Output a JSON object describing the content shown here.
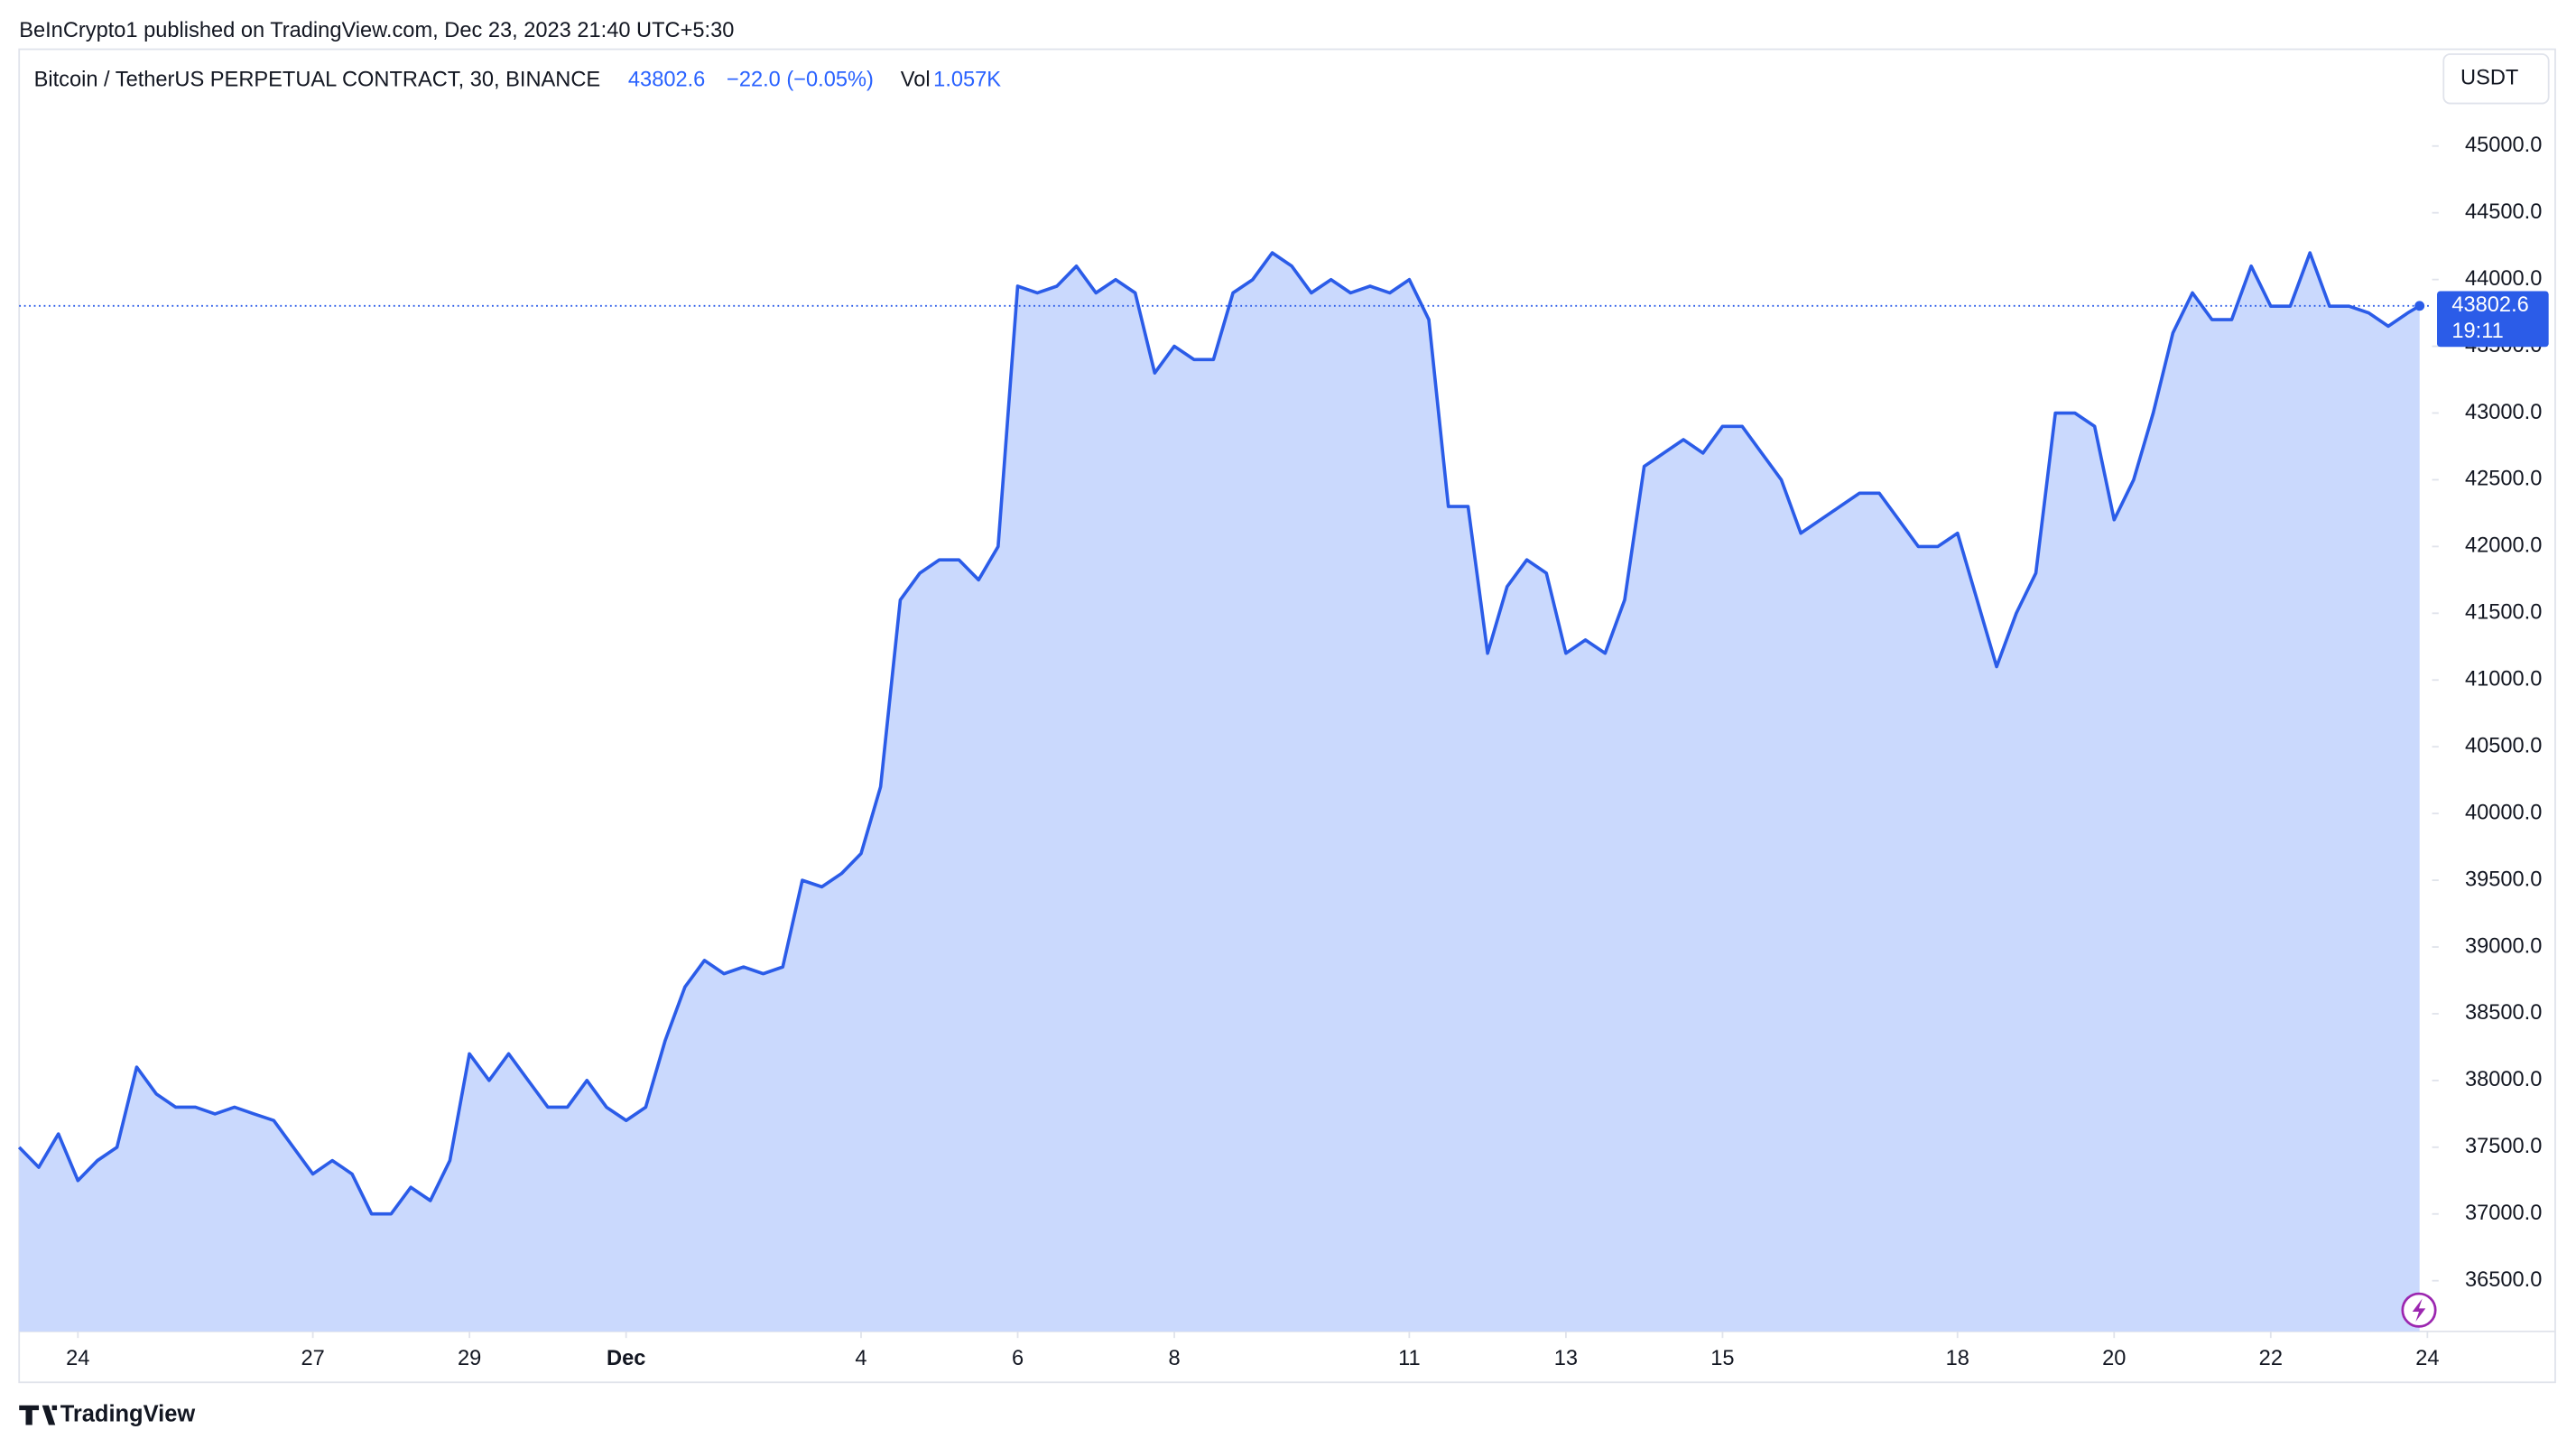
{
  "header": {
    "published": "BeInCrypto1 published on TradingView.com, Dec 23, 2023 21:40 UTC+5:30",
    "symbol": "Bitcoin / TetherUS PERPETUAL CONTRACT, 30, BINANCE",
    "change": "−22.0 (−0.05%)",
    "vol_label": "Vol",
    "vol": "1.057K",
    "currency": "USDT",
    "countdown": "19:11",
    "footer": "TradingView"
  },
  "chart_data": {
    "type": "area",
    "color": "#2b5ce8",
    "fill": "#cad9fd",
    "last_price": 43802.6,
    "x": [
      -0.75,
      -0.5,
      -0.25,
      0,
      0.25,
      0.5,
      0.75,
      1,
      1.25,
      1.5,
      1.75,
      2,
      2.25,
      2.5,
      2.75,
      3,
      3.25,
      3.5,
      3.75,
      4,
      4.25,
      4.5,
      4.75,
      5,
      5.25,
      5.5,
      5.75,
      6,
      6.25,
      6.5,
      6.75,
      7,
      7.25,
      7.5,
      7.75,
      8,
      8.25,
      8.5,
      8.75,
      9,
      9.25,
      9.5,
      9.75,
      10,
      10.25,
      10.5,
      10.75,
      11,
      11.25,
      11.5,
      11.75,
      12,
      12.25,
      12.5,
      12.75,
      13,
      13.25,
      13.5,
      13.75,
      14,
      14.25,
      14.5,
      14.75,
      15,
      15.25,
      15.5,
      15.75,
      16,
      16.25,
      16.5,
      16.75,
      17,
      17.25,
      17.5,
      17.75,
      18,
      18.25,
      18.5,
      18.75,
      19,
      19.25,
      19.5,
      19.75,
      20,
      20.25,
      20.5,
      20.75,
      21,
      21.25,
      21.5,
      21.75,
      22,
      22.25,
      22.5,
      22.75,
      23,
      23.25,
      23.5,
      23.75,
      24,
      24.25,
      24.5,
      24.75,
      25,
      25.25,
      25.5,
      25.75,
      26,
      26.25,
      26.5,
      26.75,
      27,
      27.25,
      27.5,
      27.75,
      28,
      28.25,
      28.5,
      28.75,
      29,
      29.25,
      29.5,
      29.75,
      29.9
    ],
    "values": [
      37500,
      37350,
      37600,
      37250,
      37400,
      37500,
      38100,
      37900,
      37800,
      37800,
      37750,
      37800,
      37750,
      37700,
      37500,
      37300,
      37400,
      37300,
      37000,
      37000,
      37200,
      37100,
      37400,
      38200,
      38000,
      38200,
      38000,
      37800,
      37800,
      38000,
      37800,
      37700,
      37800,
      38300,
      38700,
      38900,
      38800,
      38850,
      38800,
      38850,
      39500,
      39450,
      39550,
      39700,
      40200,
      41600,
      41800,
      41900,
      41900,
      41750,
      42000,
      43950,
      43900,
      43950,
      44100,
      43900,
      44000,
      43900,
      43300,
      43500,
      43400,
      43400,
      43900,
      44000,
      44200,
      44100,
      43900,
      44000,
      43900,
      43950,
      43900,
      44000,
      43700,
      42300,
      42300,
      41200,
      41700,
      41900,
      41800,
      41200,
      41300,
      41200,
      41600,
      42600,
      42700,
      42800,
      42700,
      42900,
      42900,
      42700,
      42500,
      42100,
      42200,
      42300,
      42400,
      42400,
      42200,
      42000,
      42000,
      42100,
      41600,
      41100,
      41500,
      41800,
      43000,
      43000,
      42900,
      42200,
      42500,
      43000,
      43600,
      43900,
      43700,
      43700,
      44100,
      43800,
      43800,
      44200,
      43800,
      43800,
      43750,
      43650,
      43750,
      43802.6
    ],
    "xlim": [
      -0.75,
      30.06
    ],
    "xticks": [
      {
        "value": 0,
        "label": "24"
      },
      {
        "value": 3,
        "label": "27"
      },
      {
        "value": 5,
        "label": "29"
      },
      {
        "value": 7,
        "label": "Dec"
      },
      {
        "value": 10,
        "label": "4"
      },
      {
        "value": 12,
        "label": "6"
      },
      {
        "value": 14,
        "label": "8"
      },
      {
        "value": 17,
        "label": "11"
      },
      {
        "value": 19,
        "label": "13"
      },
      {
        "value": 21,
        "label": "15"
      },
      {
        "value": 24,
        "label": "18"
      },
      {
        "value": 26,
        "label": "20"
      },
      {
        "value": 28,
        "label": "22"
      },
      {
        "value": 30,
        "label": "24"
      }
    ],
    "ylim": [
      36120,
      45725
    ],
    "yticks": [
      {
        "value": 36500,
        "label": "36500.0"
      },
      {
        "value": 37000,
        "label": "37000.0"
      },
      {
        "value": 37500,
        "label": "37500.0"
      },
      {
        "value": 38000,
        "label": "38000.0"
      },
      {
        "value": 38500,
        "label": "38500.0"
      },
      {
        "value": 39000,
        "label": "39000.0"
      },
      {
        "value": 39500,
        "label": "39500.0"
      },
      {
        "value": 40000,
        "label": "40000.0"
      },
      {
        "value": 40500,
        "label": "40500.0"
      },
      {
        "value": 41000,
        "label": "41000.0"
      },
      {
        "value": 41500,
        "label": "41500.0"
      },
      {
        "value": 42000,
        "label": "42000.0"
      },
      {
        "value": 42500,
        "label": "42500.0"
      },
      {
        "value": 43000,
        "label": "43000.0"
      },
      {
        "value": 43500,
        "label": "43500.0"
      },
      {
        "value": 44000,
        "label": "44000.0"
      },
      {
        "value": 44500,
        "label": "44500.0"
      },
      {
        "value": 45000,
        "label": "45000.0"
      }
    ]
  }
}
